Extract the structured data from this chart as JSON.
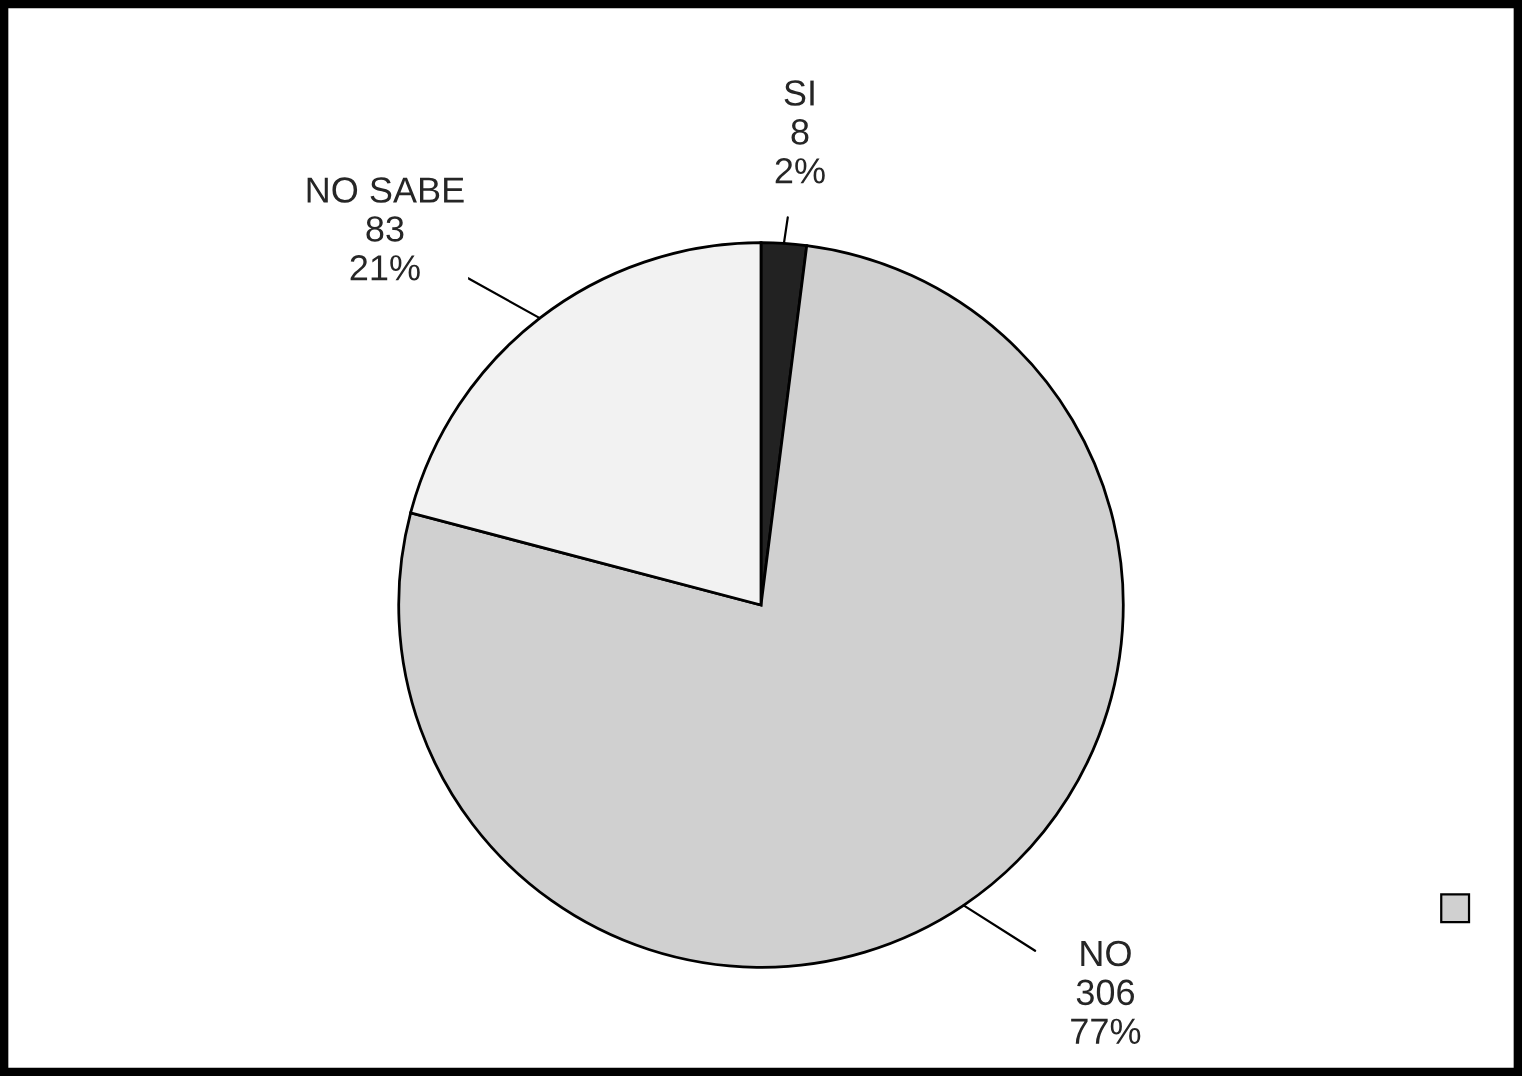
{
  "chart_data": {
    "type": "pie",
    "categories": [
      "SI",
      "NO",
      "NO SABE"
    ],
    "values": [
      8,
      306,
      83
    ],
    "colors": [
      "#222222",
      "#d0d0d0",
      "#f2f2f2"
    ],
    "value_labels": [
      "8\n2%",
      "306\n77%",
      "83\n21%"
    ]
  }
}
